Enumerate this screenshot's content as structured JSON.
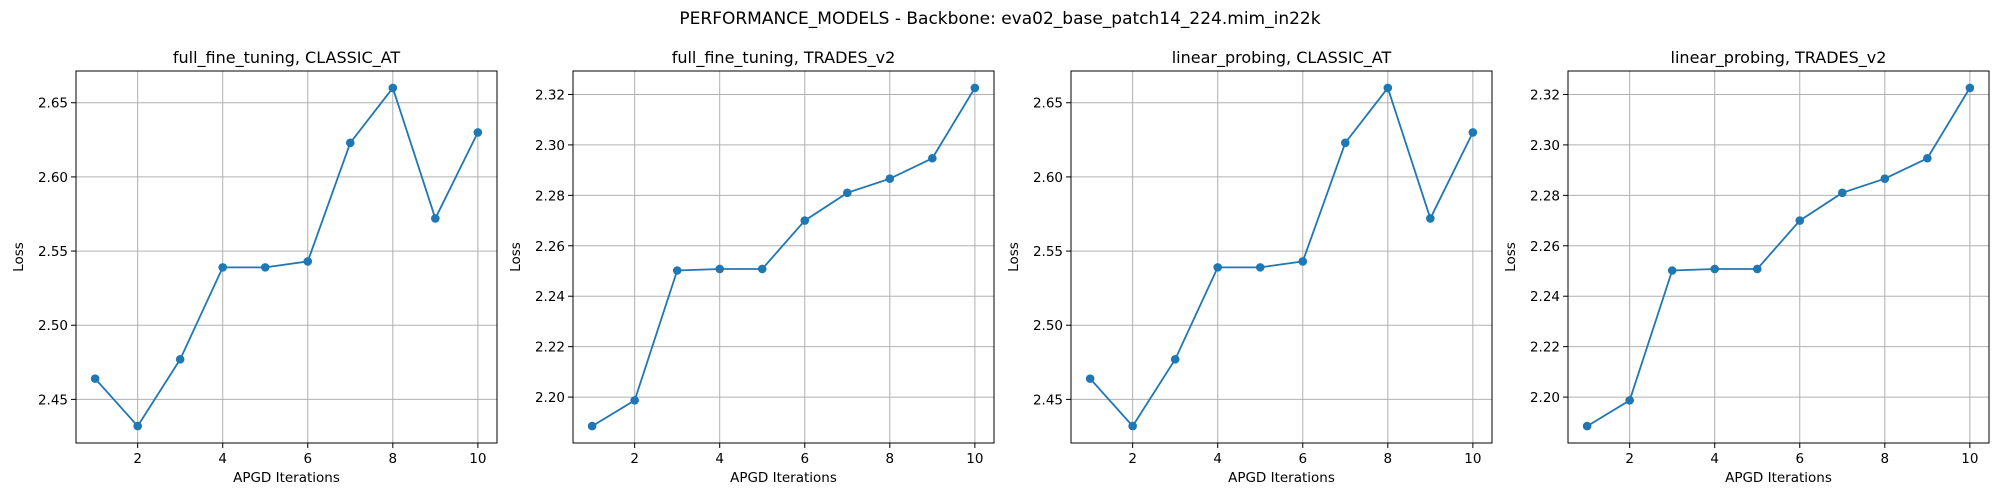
{
  "figure_title": "PERFORMANCE_MODELS - Backbone: eva02_base_patch14_224.mim_in22k",
  "chart_data": [
    {
      "type": "line",
      "title": "full_fine_tuning, CLASSIC_AT",
      "xlabel": "APGD Iterations",
      "ylabel": "Loss",
      "x": [
        1,
        2,
        3,
        4,
        5,
        6,
        7,
        8,
        9,
        10
      ],
      "series": [
        {
          "values": [
            2.464,
            2.432,
            2.477,
            2.539,
            2.539,
            2.543,
            2.623,
            2.66,
            2.572,
            2.63
          ],
          "color": "#1f77b4"
        }
      ],
      "xlim": [
        0.55,
        10.45
      ],
      "ylim": [
        2.4206,
        2.6714
      ],
      "xticks": [
        2,
        4,
        6,
        8,
        10
      ],
      "yticks": [
        2.45,
        2.5,
        2.55,
        2.6,
        2.65
      ],
      "ytick_labels": [
        "2.45",
        "2.50",
        "2.55",
        "2.60",
        "2.65"
      ],
      "grid": true
    },
    {
      "type": "line",
      "title": "full_fine_tuning, TRADES_v2",
      "xlabel": "APGD Iterations",
      "ylabel": "Loss",
      "x": [
        1,
        2,
        3,
        4,
        5,
        6,
        7,
        8,
        9,
        10
      ],
      "series": [
        {
          "values": [
            2.1885,
            2.1987,
            2.2502,
            2.2508,
            2.2508,
            2.27,
            2.281,
            2.2866,
            2.2947,
            2.3226
          ],
          "color": "#1f77b4"
        }
      ],
      "xlim": [
        0.55,
        10.45
      ],
      "ylim": [
        2.1818,
        2.3293
      ],
      "xticks": [
        2,
        4,
        6,
        8,
        10
      ],
      "yticks": [
        2.2,
        2.22,
        2.24,
        2.26,
        2.28,
        2.3,
        2.32
      ],
      "ytick_labels": [
        "2.20",
        "2.22",
        "2.24",
        "2.26",
        "2.28",
        "2.30",
        "2.32"
      ],
      "grid": true
    },
    {
      "type": "line",
      "title": "linear_probing, CLASSIC_AT",
      "xlabel": "APGD Iterations",
      "ylabel": "Loss",
      "x": [
        1,
        2,
        3,
        4,
        5,
        6,
        7,
        8,
        9,
        10
      ],
      "series": [
        {
          "values": [
            2.464,
            2.432,
            2.477,
            2.539,
            2.539,
            2.543,
            2.623,
            2.66,
            2.572,
            2.63
          ],
          "color": "#1f77b4"
        }
      ],
      "xlim": [
        0.55,
        10.45
      ],
      "ylim": [
        2.4206,
        2.6714
      ],
      "xticks": [
        2,
        4,
        6,
        8,
        10
      ],
      "yticks": [
        2.45,
        2.5,
        2.55,
        2.6,
        2.65
      ],
      "ytick_labels": [
        "2.45",
        "2.50",
        "2.55",
        "2.60",
        "2.65"
      ],
      "grid": true
    },
    {
      "type": "line",
      "title": "linear_probing, TRADES_v2",
      "xlabel": "APGD Iterations",
      "ylabel": "Loss",
      "x": [
        1,
        2,
        3,
        4,
        5,
        6,
        7,
        8,
        9,
        10
      ],
      "series": [
        {
          "values": [
            2.1885,
            2.1987,
            2.2502,
            2.2508,
            2.2508,
            2.27,
            2.281,
            2.2866,
            2.2947,
            2.3226
          ],
          "color": "#1f77b4"
        }
      ],
      "xlim": [
        0.55,
        10.45
      ],
      "ylim": [
        2.1818,
        2.3293
      ],
      "xticks": [
        2,
        4,
        6,
        8,
        10
      ],
      "yticks": [
        2.2,
        2.22,
        2.24,
        2.26,
        2.28,
        2.3,
        2.32
      ],
      "ytick_labels": [
        "2.20",
        "2.22",
        "2.24",
        "2.26",
        "2.28",
        "2.30",
        "2.32"
      ],
      "grid": true
    }
  ]
}
